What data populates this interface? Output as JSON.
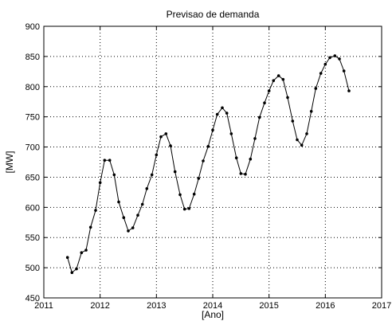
{
  "chart_data": {
    "type": "line",
    "title": "Previsao de demanda",
    "xlabel": "[Ano]",
    "ylabel": "[MW]",
    "xlim": [
      2011,
      2017
    ],
    "ylim": [
      450,
      900
    ],
    "xticks": [
      2011,
      2012,
      2013,
      2014,
      2015,
      2016,
      2017
    ],
    "yticks": [
      450,
      500,
      550,
      600,
      650,
      700,
      750,
      800,
      850,
      900
    ],
    "grid": true,
    "legend": "none",
    "series": [
      {
        "color": "#000000",
        "marker": "dot",
        "x": [
          2011.42,
          2011.5,
          2011.58,
          2011.67,
          2011.75,
          2011.83,
          2011.92,
          2012.0,
          2012.08,
          2012.17,
          2012.25,
          2012.33,
          2012.42,
          2012.5,
          2012.58,
          2012.67,
          2012.75,
          2012.83,
          2012.92,
          2013.0,
          2013.08,
          2013.17,
          2013.25,
          2013.33,
          2013.42,
          2013.5,
          2013.58,
          2013.67,
          2013.75,
          2013.83,
          2013.92,
          2014.0,
          2014.08,
          2014.17,
          2014.25,
          2014.33,
          2014.42,
          2014.5,
          2014.58,
          2014.67,
          2014.75,
          2014.83,
          2014.92,
          2015.0,
          2015.08,
          2015.17,
          2015.25,
          2015.33,
          2015.42,
          2015.5,
          2015.58,
          2015.67,
          2015.75,
          2015.83,
          2015.92,
          2016.0,
          2016.08,
          2016.17,
          2016.25,
          2016.33,
          2016.42
        ],
        "y": [
          517,
          492,
          498,
          525,
          529,
          567,
          595,
          641,
          678,
          678,
          654,
          609,
          583,
          561,
          566,
          587,
          605,
          631,
          654,
          687,
          717,
          722,
          702,
          659,
          621,
          597,
          598,
          622,
          648,
          677,
          701,
          728,
          754,
          765,
          756,
          722,
          682,
          656,
          655,
          680,
          714,
          749,
          773,
          793,
          810,
          818,
          812,
          782,
          743,
          712,
          703,
          722,
          759,
          797,
          822,
          837,
          848,
          851,
          846,
          826,
          793
        ]
      }
    ]
  }
}
